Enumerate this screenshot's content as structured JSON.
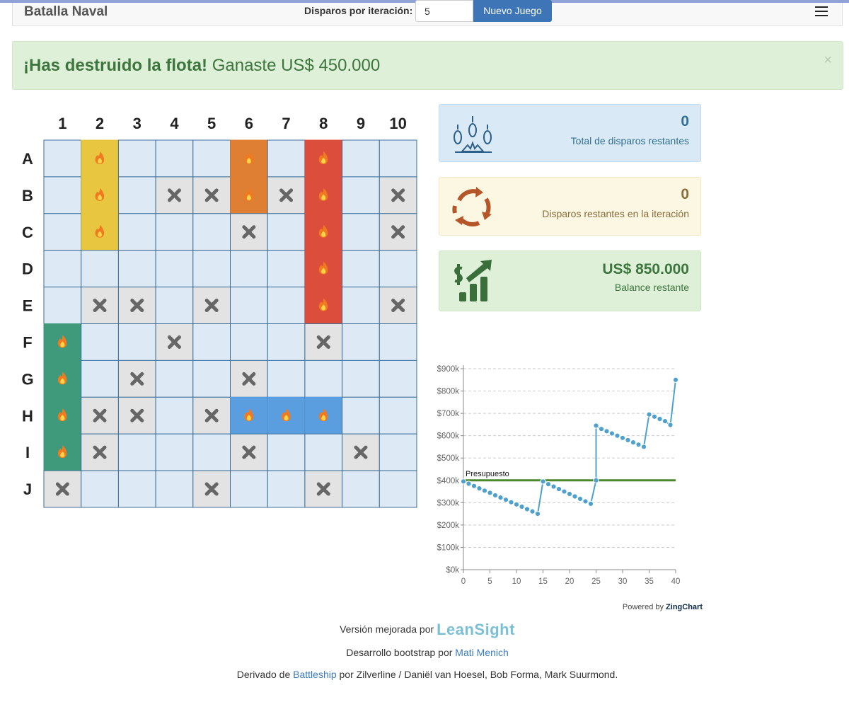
{
  "navbar": {
    "brand": "Batalla Naval",
    "shots_label": "Disparos por iteración:",
    "shots_value": "5",
    "new_game": "Nuevo Juego"
  },
  "alert": {
    "strong": "¡Has destruido la flota!",
    "text": "Ganaste US$ 450.000",
    "close": "×"
  },
  "board": {
    "columns": [
      "1",
      "2",
      "3",
      "4",
      "5",
      "6",
      "7",
      "8",
      "9",
      "10"
    ],
    "rows": [
      "A",
      "B",
      "C",
      "D",
      "E",
      "F",
      "G",
      "H",
      "I",
      "J"
    ]
  },
  "stats": [
    {
      "value": "0",
      "label": "Total de disparos restantes"
    },
    {
      "value": "0",
      "label": "Disparos restantes en la iteración"
    },
    {
      "value": "US$ 850.000",
      "label": "Balance restante"
    }
  ],
  "chart_data": {
    "type": "line",
    "x": [
      0,
      1,
      2,
      3,
      4,
      5,
      6,
      7,
      8,
      9,
      10,
      11,
      12,
      13,
      14,
      15,
      16,
      17,
      18,
      19,
      20,
      21,
      22,
      23,
      24,
      25,
      25,
      26,
      27,
      28,
      29,
      30,
      31,
      32,
      33,
      34,
      35,
      36,
      37,
      38,
      39,
      40
    ],
    "series": [
      {
        "color": "#4fa0cc",
        "values": [
          395,
          385,
          375,
          364,
          354,
          344,
          333,
          323,
          313,
          302,
          292,
          282,
          271,
          261,
          250,
          395,
          383,
          372,
          361,
          350,
          339,
          328,
          317,
          306,
          295,
          400,
          645,
          630,
          620,
          610,
          600,
          590,
          580,
          570,
          560,
          550,
          695,
          685,
          675,
          665,
          648,
          850
        ]
      }
    ],
    "xlim": [
      0,
      40
    ],
    "xticks": [
      0,
      5,
      10,
      15,
      20,
      25,
      30,
      35,
      40
    ],
    "ylim": [
      0,
      900
    ],
    "yticks": [
      {
        "value": 0,
        "label": "$0k"
      },
      {
        "value": 100,
        "label": "$100k"
      },
      {
        "value": 200,
        "label": "$200k"
      },
      {
        "value": 300,
        "label": "$300k"
      },
      {
        "value": 400,
        "label": "$400k"
      },
      {
        "value": 500,
        "label": "$500k"
      },
      {
        "value": 600,
        "label": "$600k"
      },
      {
        "value": 700,
        "label": "$700k"
      },
      {
        "value": 800,
        "label": "$800k"
      },
      {
        "value": 900,
        "label": "$900k"
      }
    ],
    "grid": true,
    "budget": {
      "value": 400,
      "label": "Presupuesto",
      "color": "#4a8a2a"
    },
    "credit": {
      "prefix": "Powered by",
      "brand": "ZingChart"
    }
  },
  "footer": {
    "line1": {
      "text": "Versión mejorada por",
      "logo": "LeanSight"
    },
    "line2": {
      "text": "Desarrollo bootstrap por",
      "link": "Mati Menich"
    },
    "line3": {
      "text": "Derivado de",
      "link": "Battleship",
      "rest": "por Zilverline / Daniël van Hoesel, Bob Forma, Mark Suurmond."
    }
  }
}
